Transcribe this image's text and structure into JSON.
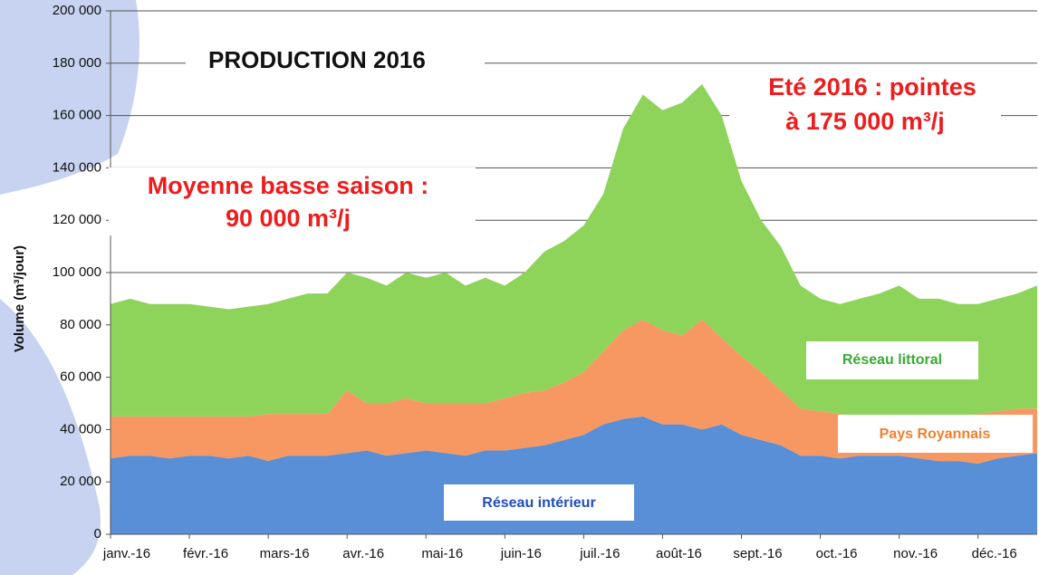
{
  "chart_data": {
    "type": "stacked_area",
    "title": "PRODUCTION 2016",
    "y_label": "Volume (m³/jour)",
    "annotations": [
      "Moyenne basse saison :",
      "90 000 m³/j",
      "Eté 2016 : pointes",
      "à 175 000 m³/j"
    ],
    "categories": [
      "janv.-16",
      null,
      null,
      null,
      "févr.-16",
      null,
      null,
      null,
      "mars-16",
      null,
      null,
      null,
      "avr.-16",
      null,
      null,
      null,
      "mai-16",
      null,
      null,
      null,
      "juin-16",
      null,
      null,
      null,
      "juil.-16",
      null,
      null,
      null,
      "août-16",
      null,
      null,
      null,
      "sept.-16",
      null,
      null,
      null,
      "oct.-16",
      null,
      null,
      null,
      "nov.-16",
      null,
      null,
      null,
      "déc.-16",
      null,
      null,
      null
    ],
    "series": [
      {
        "name": "Réseau intérieur",
        "color": "#588fd6",
        "values": [
          29000,
          30000,
          30000,
          29000,
          30000,
          30000,
          29000,
          30000,
          28000,
          30000,
          30000,
          30000,
          31000,
          32000,
          30000,
          31000,
          32000,
          31000,
          30000,
          32000,
          32000,
          33000,
          34000,
          36000,
          38000,
          42000,
          44000,
          45000,
          42000,
          42000,
          40000,
          42000,
          38000,
          36000,
          34000,
          30000,
          30000,
          29000,
          30000,
          30000,
          30000,
          29000,
          28000,
          28000,
          27000,
          29000,
          30000,
          31000
        ]
      },
      {
        "name": "Pays Royannais",
        "color": "#f79862",
        "values": [
          16000,
          15000,
          15000,
          16000,
          15000,
          15000,
          16000,
          15000,
          18000,
          16000,
          16000,
          16000,
          24000,
          18000,
          20000,
          21000,
          18000,
          19000,
          20000,
          18000,
          20000,
          21000,
          21000,
          22000,
          24000,
          28000,
          34000,
          37000,
          36000,
          34000,
          42000,
          33000,
          30000,
          26000,
          21000,
          18000,
          17000,
          17000,
          15000,
          15000,
          15000,
          16000,
          17000,
          17000,
          19000,
          18000,
          18000,
          17000
        ]
      },
      {
        "name": "Réseau littoral",
        "color": "#8ed35a",
        "values": [
          43000,
          45000,
          43000,
          43000,
          43000,
          42000,
          41000,
          42000,
          42000,
          44000,
          46000,
          46000,
          45000,
          48000,
          45000,
          48000,
          48000,
          50000,
          45000,
          48000,
          43000,
          46000,
          53000,
          54000,
          56000,
          60000,
          77000,
          86000,
          84000,
          89000,
          90000,
          85000,
          67000,
          58000,
          55000,
          47000,
          43000,
          42000,
          45000,
          47000,
          50000,
          45000,
          45000,
          43000,
          42000,
          43000,
          44000,
          47000
        ]
      }
    ],
    "ylim": [
      0,
      200000
    ],
    "yticks": [
      0,
      {
        "value": 20000,
        "label": "20 000"
      },
      {
        "value": 40000,
        "label": "40 000"
      },
      {
        "value": 60000,
        "label": "60 000"
      },
      {
        "value": 80000,
        "label": "80 000"
      },
      {
        "value": 100000,
        "label": "100 000"
      },
      {
        "value": 120000,
        "label": "120 000"
      },
      {
        "value": 140000,
        "label": "140 000"
      },
      {
        "value": 160000,
        "label": "160 000"
      },
      {
        "value": 180000,
        "label": "180 000"
      },
      {
        "value": 200000,
        "label": "200 000"
      }
    ],
    "grid": true
  }
}
